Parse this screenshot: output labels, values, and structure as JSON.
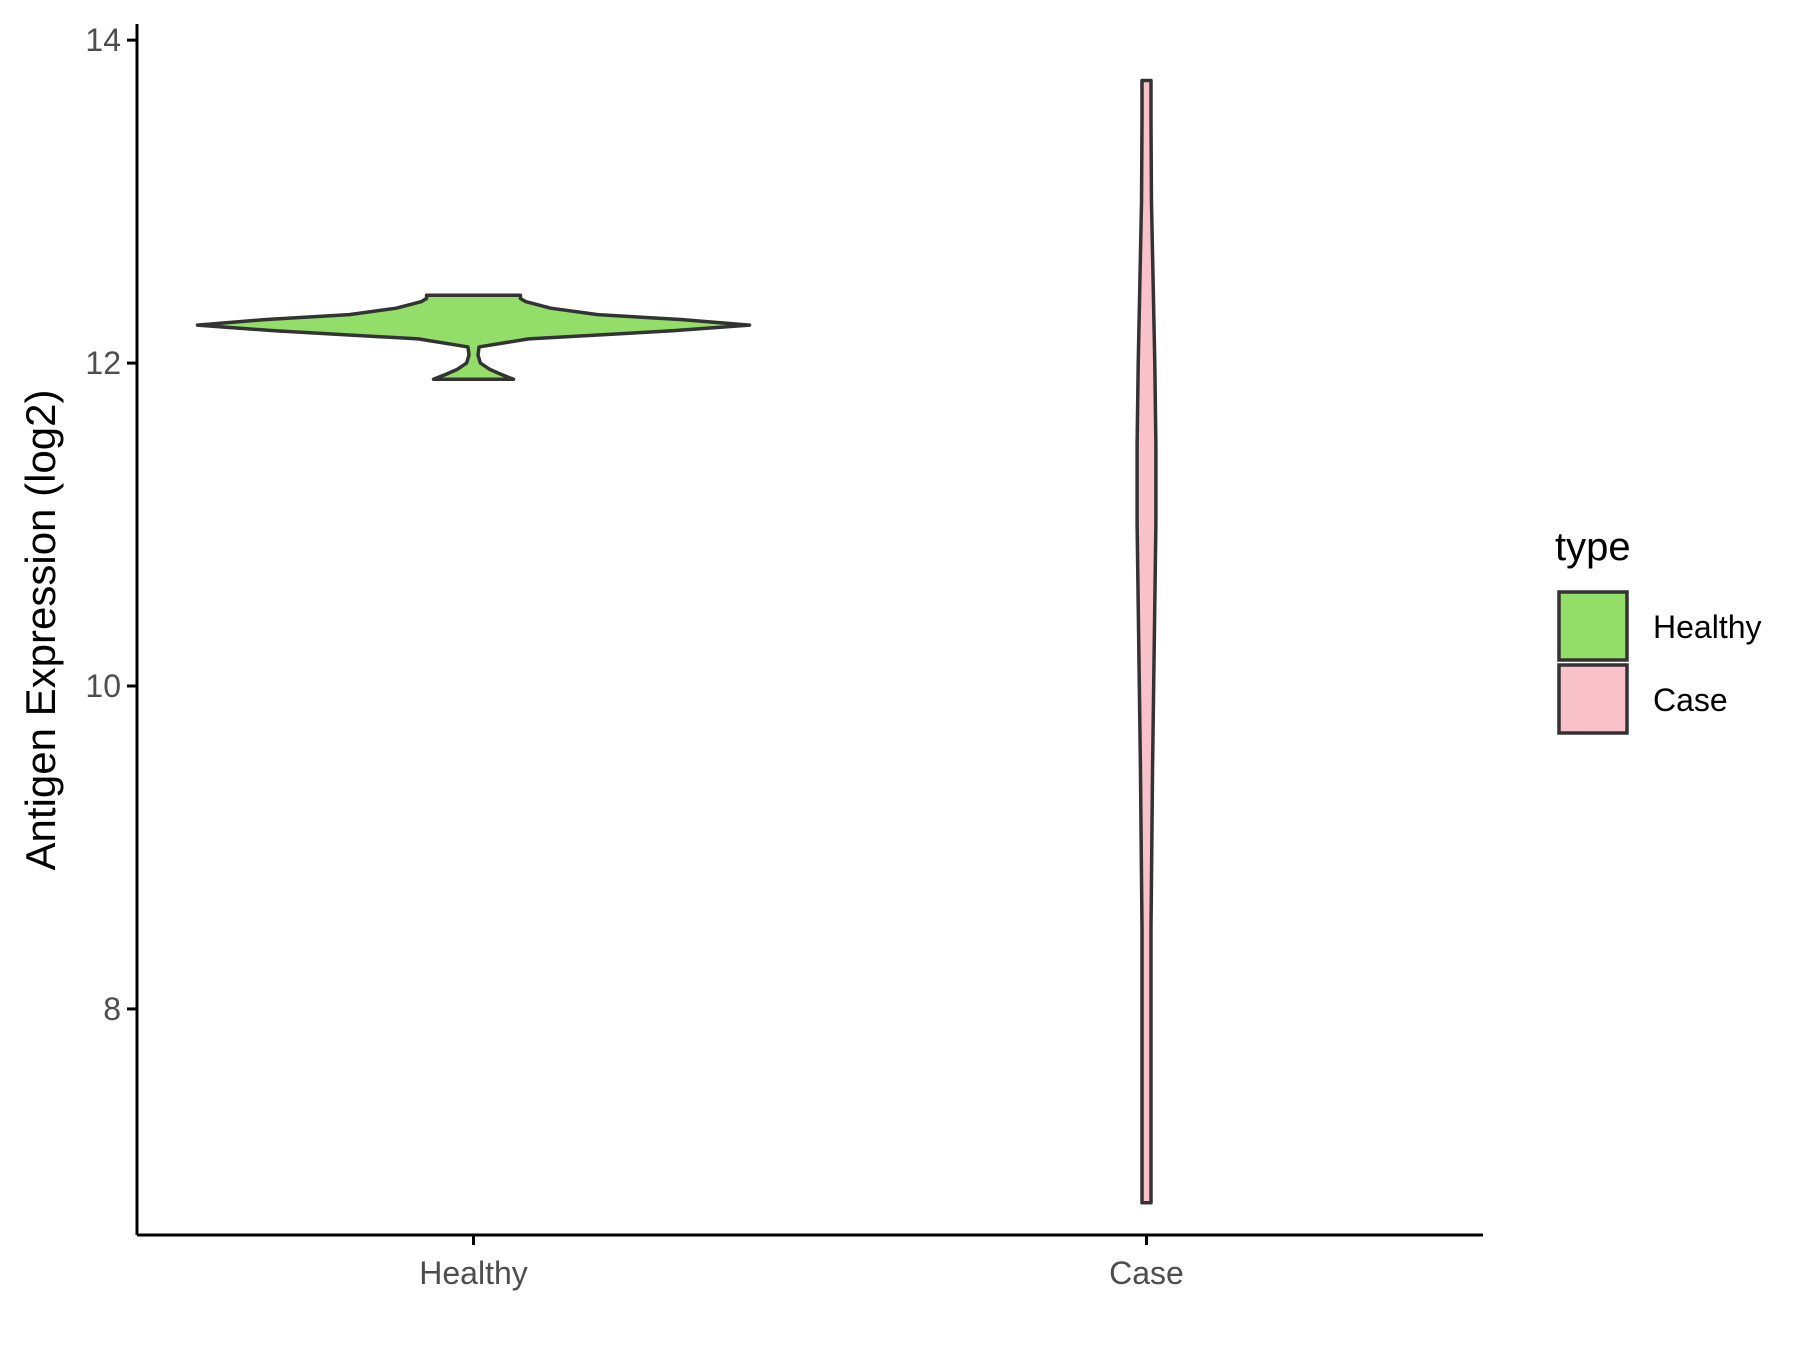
{
  "chart_data": {
    "type": "violin",
    "title": "",
    "xlabel": "",
    "ylabel": "Antigen Expression (log2)",
    "categories": [
      "Healthy",
      "Case"
    ],
    "ylim": [
      6.6,
      14.1
    ],
    "yticks": [
      8,
      10,
      12,
      14
    ],
    "grid": false,
    "legend": {
      "title": "type",
      "placement": "right",
      "entries": [
        {
          "label": "Healthy",
          "color": "#93dd69"
        },
        {
          "label": "Case",
          "color": "#f9c2cb"
        }
      ]
    },
    "outline_color": "#333333",
    "series": [
      {
        "category": "Healthy",
        "color": "#93dd69",
        "min": 11.9,
        "max": 12.42,
        "profile": [
          [
            11.9,
            0.145
          ],
          [
            11.93,
            0.1
          ],
          [
            11.96,
            0.06
          ],
          [
            12.0,
            0.025
          ],
          [
            12.05,
            0.004
          ],
          [
            12.1,
            0.02
          ],
          [
            12.15,
            0.2
          ],
          [
            12.2,
            0.72
          ],
          [
            12.235,
            1.0
          ],
          [
            12.27,
            0.75
          ],
          [
            12.3,
            0.45
          ],
          [
            12.34,
            0.28
          ],
          [
            12.38,
            0.19
          ],
          [
            12.4,
            0.17
          ],
          [
            12.42,
            0.17
          ]
        ]
      },
      {
        "category": "Case",
        "color": "#f9c2cb",
        "min": 6.8,
        "max": 13.75,
        "profile": [
          [
            6.8,
            0.0
          ],
          [
            6.9,
            0.002
          ],
          [
            7.5,
            0.006
          ],
          [
            8.5,
            0.014
          ],
          [
            9.5,
            0.022
          ],
          [
            10.0,
            0.026
          ],
          [
            10.5,
            0.03
          ],
          [
            11.0,
            0.034
          ],
          [
            11.5,
            0.034
          ],
          [
            12.0,
            0.03
          ],
          [
            12.5,
            0.024
          ],
          [
            13.0,
            0.018
          ],
          [
            13.5,
            0.012
          ],
          [
            13.75,
            0.012
          ]
        ]
      }
    ]
  }
}
